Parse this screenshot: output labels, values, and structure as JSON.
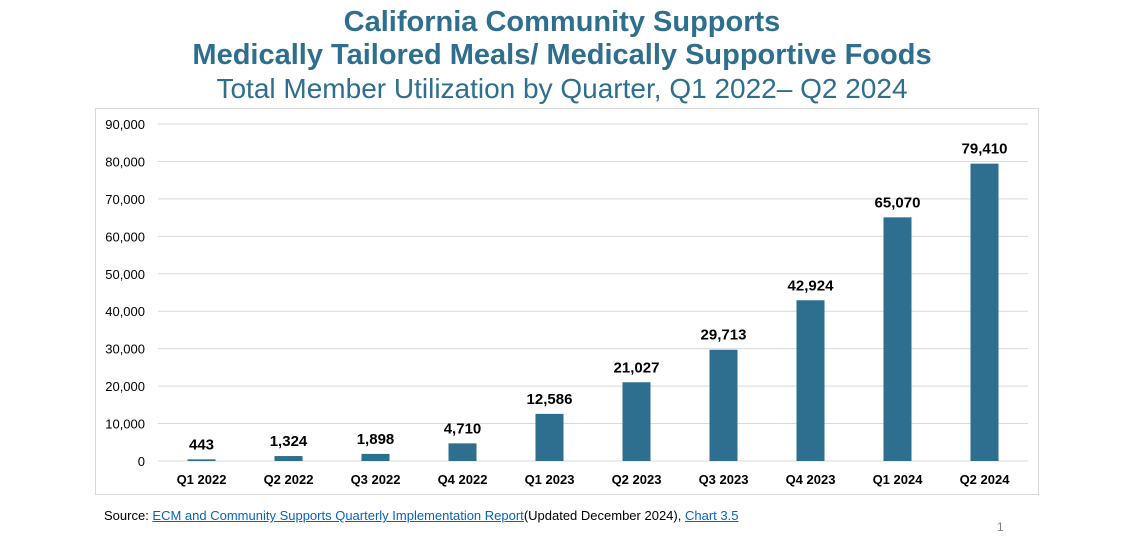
{
  "title_line1": "California Community Supports",
  "title_line2": "Medically Tailored Meals/ Medically Supportive Foods",
  "subtitle": "Total Member Utilization by Quarter, Q1 2022– Q2 2024",
  "source": {
    "prefix": "Source: ",
    "link1": "ECM and Community Supports Quarterly Implementation Report",
    "middle": "(Updated December 2024), ",
    "link2": "Chart 3.5"
  },
  "page_number": "1",
  "colors": {
    "title": "#2e6e8e",
    "bar": "#2e6e8e",
    "grid": "#d9d9d9",
    "link": "#0563c1"
  },
  "chart_data": {
    "type": "bar",
    "title": "Total Member Utilization by Quarter, Q1 2022– Q2 2024",
    "xlabel": "",
    "ylabel": "",
    "categories": [
      "Q1 2022",
      "Q2 2022",
      "Q3 2022",
      "Q4 2022",
      "Q1 2023",
      "Q2 2023",
      "Q3 2023",
      "Q4 2023",
      "Q1 2024",
      "Q2 2024"
    ],
    "values": [
      443,
      1324,
      1898,
      4710,
      12586,
      21027,
      29713,
      42924,
      65070,
      79410
    ],
    "value_labels": [
      "443",
      "1,324",
      "1,898",
      "4,710",
      "12,586",
      "21,027",
      "29,713",
      "42,924",
      "65,070",
      "79,410"
    ],
    "ylim": [
      0,
      90000
    ],
    "yticks": [
      0,
      10000,
      20000,
      30000,
      40000,
      50000,
      60000,
      70000,
      80000,
      90000
    ],
    "ytick_labels": [
      "0",
      "10,000",
      "20,000",
      "30,000",
      "40,000",
      "50,000",
      "60,000",
      "70,000",
      "80,000",
      "90,000"
    ],
    "grid": true,
    "legend": "none"
  }
}
